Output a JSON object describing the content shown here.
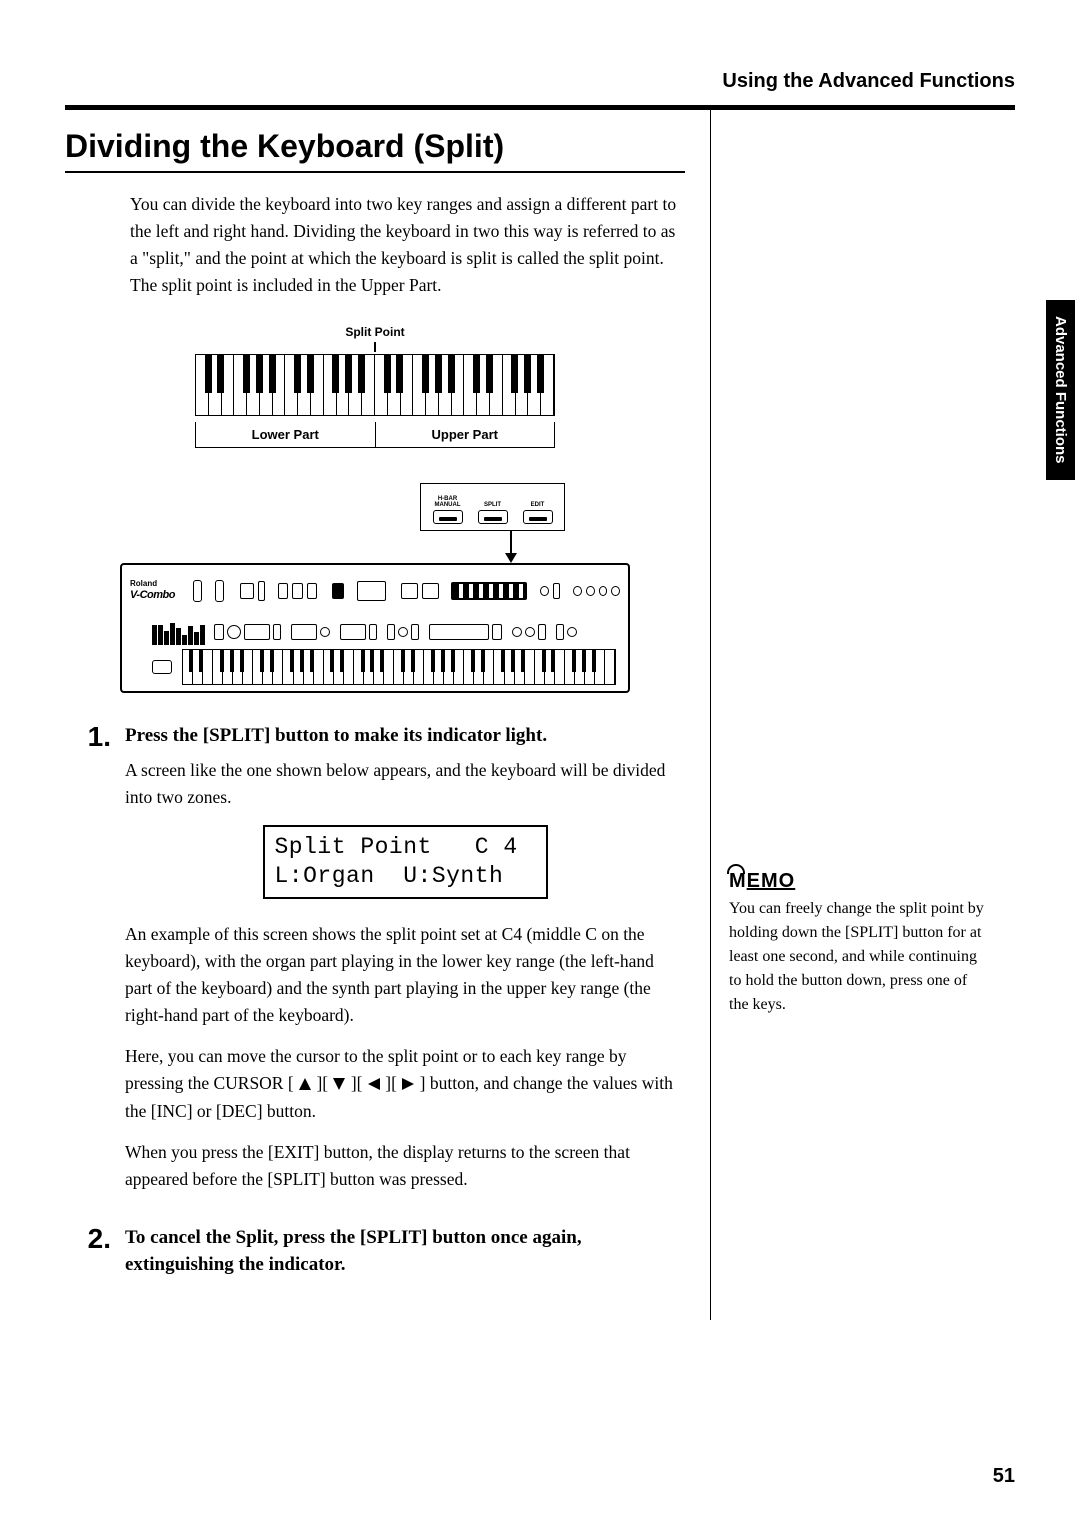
{
  "header": "Using the Advanced Functions",
  "section_title": "Dividing the Keyboard (Split)",
  "intro": "You can divide the keyboard into two key ranges and assign a different part to the left and right hand. Dividing the keyboard in two this way is referred to as a \"split,\" and the point at which the keyboard is split is called the split point. The split point is included in the Upper Part.",
  "keyboard_diagram": {
    "split_label": "Split Point",
    "lower": "Lower Part",
    "upper": "Upper Part",
    "white_keys": 28,
    "split_after_key": 14
  },
  "callout": {
    "labels": [
      "H-BAR MANUAL",
      "SPLIT",
      "EDIT"
    ]
  },
  "brand": {
    "name": "Roland",
    "model": "V-Combo"
  },
  "step1": {
    "num": "1.",
    "title": "Press the [SPLIT] button to make its indicator light.",
    "p1": "A screen like the one shown below appears, and the keyboard will be divided into two zones.",
    "p2": "An example of this screen shows the split point set at C4 (middle C on the keyboard), with the organ part playing in the lower key range (the left-hand part of the keyboard) and the synth part playing in the upper key range (the right-hand part of the keyboard).",
    "p3a": "Here, you can move the cursor to the split point or to each key range by pressing the CURSOR [",
    "p3b": "][",
    "p3c": "][",
    "p3d": "][",
    "p3e": "] button, and change the values with the [INC] or [DEC] button.",
    "p4": "When you press the [EXIT] button, the display returns to the screen that appeared before the [SPLIT] button was pressed."
  },
  "lcd": {
    "line1": "Split Point   C 4",
    "line2": "L:Organ  U:Synth"
  },
  "step2": {
    "num": "2.",
    "title": "To cancel the Split, press the [SPLIT] button once again, extinguishing the indicator."
  },
  "side_tab": "Advanced Functions",
  "memo": {
    "label": "MEMO",
    "text": "You can freely change the split point by holding down the [SPLIT] button for at least one second, and while continuing to hold the button down, press one of the keys."
  },
  "page_number": "51",
  "piano_black_offsets_pct": [
    2.5,
    6.0,
    13.1,
    16.7,
    20.3,
    27.4,
    31.0,
    38.1,
    41.7,
    45.3,
    52.4,
    56.0,
    63.1,
    66.7,
    70.3,
    77.4,
    81.0,
    88.1,
    91.7,
    95.3
  ],
  "mini_piano": {
    "white_keys": 43,
    "black_offsets_pct": [
      1.5,
      3.8,
      8.5,
      10.8,
      13.1,
      17.8,
      20.1,
      24.8,
      27.1,
      29.4,
      34.1,
      36.4,
      41.1,
      43.4,
      45.7,
      50.4,
      52.7,
      57.4,
      59.7,
      62.0,
      66.7,
      69.0,
      73.7,
      76.0,
      78.3,
      83.0,
      85.3,
      90.0,
      92.3,
      94.6
    ]
  },
  "drawbars": [
    20,
    20,
    14,
    22,
    17,
    10,
    19,
    13,
    20
  ]
}
